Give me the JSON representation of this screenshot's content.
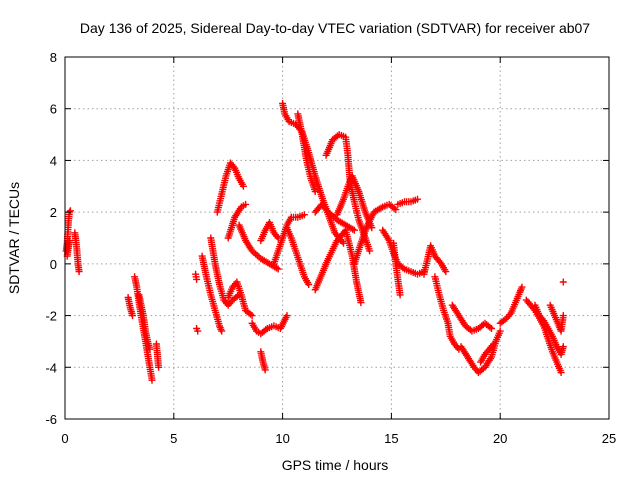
{
  "chart_data": {
    "type": "scatter",
    "title": "Day 136 of 2025, Sidereal Day-to-day VTEC variation (SDTVAR) for receiver ab07",
    "xlabel": "GPS time / hours",
    "ylabel": "SDTVAR / TECUs",
    "xlim": [
      0,
      25
    ],
    "ylim": [
      -6,
      8
    ],
    "xticks": [
      0,
      5,
      10,
      15,
      20,
      25
    ],
    "yticks": [
      -6,
      -4,
      -2,
      0,
      2,
      4,
      6,
      8
    ],
    "xtick_labels": [
      "0",
      "5",
      "10",
      "15",
      "20",
      "25"
    ],
    "ytick_labels": [
      "-6",
      "-4",
      "-2",
      "0",
      "2",
      "4",
      "6",
      "8"
    ],
    "grid": true,
    "marker": "plus",
    "color": "#ff0000",
    "series": [
      {
        "name": "ab07",
        "tracks": [
          [
            [
              0.05,
              0.5
            ],
            [
              0.1,
              0.8
            ],
            [
              0.15,
              1.5
            ],
            [
              0.2,
              2.0
            ],
            [
              0.25,
              2.05
            ]
          ],
          [
            [
              0.1,
              0.3
            ],
            [
              0.15,
              0.6
            ],
            [
              0.2,
              0.9
            ]
          ],
          [
            [
              0.45,
              1.2
            ],
            [
              0.5,
              0.9
            ],
            [
              0.55,
              0.5
            ],
            [
              0.6,
              0.0
            ],
            [
              0.65,
              -0.3
            ]
          ],
          [
            [
              2.9,
              -1.3
            ],
            [
              3.0,
              -1.7
            ],
            [
              3.1,
              -2.0
            ]
          ],
          [
            [
              3.2,
              -0.5
            ],
            [
              3.3,
              -0.9
            ],
            [
              3.4,
              -1.5
            ],
            [
              3.5,
              -2.0
            ],
            [
              3.6,
              -2.5
            ],
            [
              3.7,
              -3.0
            ],
            [
              3.8,
              -3.5
            ],
            [
              3.9,
              -4.0
            ],
            [
              4.0,
              -4.5
            ]
          ],
          [
            [
              3.4,
              -1.2
            ],
            [
              3.5,
              -1.6
            ],
            [
              3.6,
              -2.0
            ],
            [
              3.7,
              -2.6
            ],
            [
              3.8,
              -3.0
            ],
            [
              3.9,
              -3.3
            ]
          ],
          [
            [
              4.2,
              -3.1
            ],
            [
              4.3,
              -4.0
            ]
          ],
          [
            [
              6.0,
              -0.4
            ],
            [
              6.05,
              -0.6
            ]
          ],
          [
            [
              6.05,
              -2.5
            ],
            [
              6.1,
              -2.6
            ]
          ],
          [
            [
              6.3,
              0.3
            ],
            [
              6.5,
              -0.5
            ],
            [
              6.7,
              -1.2
            ],
            [
              6.9,
              -1.8
            ],
            [
              7.1,
              -2.4
            ],
            [
              7.2,
              -2.6
            ]
          ],
          [
            [
              6.7,
              1.0
            ],
            [
              6.9,
              0.0
            ],
            [
              7.1,
              -0.8
            ],
            [
              7.3,
              -1.4
            ],
            [
              7.5,
              -1.6
            ],
            [
              7.7,
              -1.4
            ],
            [
              8.0,
              -1.2
            ]
          ],
          [
            [
              7.0,
              2.0
            ],
            [
              7.2,
              2.7
            ],
            [
              7.4,
              3.4
            ],
            [
              7.6,
              3.9
            ],
            [
              7.8,
              3.7
            ],
            [
              8.0,
              3.3
            ],
            [
              8.2,
              3.0
            ]
          ],
          [
            [
              7.5,
              1.0
            ],
            [
              7.8,
              1.8
            ],
            [
              8.1,
              2.2
            ],
            [
              8.3,
              2.3
            ]
          ],
          [
            [
              7.5,
              -1.3
            ],
            [
              7.7,
              -0.9
            ],
            [
              7.9,
              -0.7
            ],
            [
              8.1,
              -1.2
            ],
            [
              8.3,
              -1.8
            ],
            [
              8.6,
              -2.0
            ]
          ],
          [
            [
              8.0,
              1.5
            ],
            [
              8.3,
              0.9
            ],
            [
              8.6,
              0.5
            ],
            [
              9.0,
              0.2
            ],
            [
              9.4,
              0.0
            ],
            [
              9.8,
              -0.2
            ]
          ],
          [
            [
              8.6,
              -2.3
            ],
            [
              8.8,
              -2.6
            ],
            [
              9.0,
              -2.7
            ],
            [
              9.3,
              -2.5
            ],
            [
              9.6,
              -2.4
            ],
            [
              9.9,
              -2.5
            ],
            [
              10.2,
              -2.0
            ]
          ],
          [
            [
              9.0,
              0.9
            ],
            [
              9.2,
              1.3
            ],
            [
              9.4,
              1.6
            ],
            [
              9.6,
              1.2
            ],
            [
              9.8,
              1.0
            ]
          ],
          [
            [
              9.0,
              -3.4
            ],
            [
              9.1,
              -3.8
            ],
            [
              9.2,
              -4.1
            ]
          ],
          [
            [
              9.6,
              0.0
            ],
            [
              9.8,
              0.5
            ],
            [
              10.0,
              1.0
            ],
            [
              10.2,
              1.5
            ],
            [
              10.4,
              1.8
            ],
            [
              10.7,
              1.8
            ],
            [
              11.0,
              1.9
            ]
          ],
          [
            [
              10.0,
              6.2
            ],
            [
              10.1,
              5.8
            ],
            [
              10.3,
              5.5
            ],
            [
              10.6,
              5.4
            ],
            [
              10.9,
              5.1
            ],
            [
              11.2,
              4.3
            ],
            [
              11.5,
              3.4
            ],
            [
              11.8,
              2.6
            ],
            [
              12.1,
              1.9
            ],
            [
              12.4,
              1.2
            ],
            [
              12.8,
              0.8
            ]
          ],
          [
            [
              10.7,
              5.8
            ],
            [
              10.9,
              5.0
            ],
            [
              11.1,
              4.0
            ],
            [
              11.3,
              3.3
            ],
            [
              11.5,
              2.8
            ]
          ],
          [
            [
              10.2,
              1.4
            ],
            [
              10.4,
              1.0
            ],
            [
              10.6,
              0.5
            ],
            [
              10.8,
              0.0
            ],
            [
              11.0,
              -0.5
            ],
            [
              11.2,
              -0.8
            ]
          ],
          [
            [
              11.5,
              2.0
            ],
            [
              11.8,
              2.3
            ],
            [
              12.1,
              2.0
            ],
            [
              12.5,
              1.7
            ],
            [
              12.9,
              1.5
            ],
            [
              13.3,
              1.3
            ]
          ],
          [
            [
              12.0,
              4.2
            ],
            [
              12.3,
              4.8
            ],
            [
              12.6,
              5.0
            ],
            [
              12.9,
              4.9
            ],
            [
              13.0,
              4.2
            ],
            [
              13.1,
              3.2
            ],
            [
              13.3,
              2.4
            ],
            [
              13.5,
              1.7
            ],
            [
              13.8,
              1.0
            ],
            [
              14.0,
              0.5
            ]
          ],
          [
            [
              12.5,
              1.9
            ],
            [
              12.8,
              2.5
            ],
            [
              13.0,
              3.0
            ],
            [
              13.2,
              3.4
            ],
            [
              13.5,
              2.8
            ],
            [
              13.8,
              2.0
            ],
            [
              14.1,
              1.4
            ]
          ],
          [
            [
              11.5,
              -1.0
            ],
            [
              11.8,
              -0.4
            ],
            [
              12.1,
              0.2
            ],
            [
              12.5,
              0.9
            ],
            [
              12.9,
              1.3
            ],
            [
              13.2,
              0.3
            ],
            [
              13.4,
              -0.7
            ],
            [
              13.6,
              -1.5
            ]
          ],
          [
            [
              13.3,
              0.0
            ],
            [
              13.6,
              0.8
            ],
            [
              13.9,
              1.5
            ],
            [
              14.2,
              2.0
            ],
            [
              14.6,
              2.2
            ],
            [
              14.9,
              2.3
            ],
            [
              15.2,
              2.1
            ]
          ],
          [
            [
              15.3,
              2.3
            ],
            [
              15.6,
              2.4
            ],
            [
              15.9,
              2.4
            ],
            [
              16.2,
              2.5
            ]
          ],
          [
            [
              14.6,
              1.3
            ],
            [
              14.9,
              0.9
            ],
            [
              15.1,
              0.4
            ],
            [
              15.3,
              0.0
            ],
            [
              15.6,
              -0.2
            ],
            [
              15.9,
              -0.3
            ],
            [
              16.2,
              -0.4
            ],
            [
              16.5,
              -0.3
            ]
          ],
          [
            [
              15.1,
              0.8
            ],
            [
              15.2,
              0.0
            ],
            [
              15.3,
              -0.6
            ],
            [
              15.4,
              -1.2
            ]
          ],
          [
            [
              16.5,
              -0.4
            ],
            [
              16.8,
              0.7
            ],
            [
              17.0,
              0.3
            ],
            [
              17.3,
              0.0
            ],
            [
              17.5,
              -0.3
            ]
          ],
          [
            [
              17.0,
              -0.5
            ],
            [
              17.2,
              -1.2
            ],
            [
              17.4,
              -1.8
            ],
            [
              17.6,
              -2.3
            ],
            [
              17.7,
              -2.8
            ],
            [
              17.9,
              -3.1
            ],
            [
              18.1,
              -3.3
            ]
          ],
          [
            [
              17.8,
              -1.6
            ],
            [
              18.1,
              -2.0
            ],
            [
              18.4,
              -2.4
            ],
            [
              18.7,
              -2.6
            ],
            [
              19.0,
              -2.5
            ],
            [
              19.3,
              -2.3
            ],
            [
              19.6,
              -2.5
            ]
          ],
          [
            [
              18.2,
              -3.2
            ],
            [
              18.5,
              -3.6
            ],
            [
              18.8,
              -4.0
            ],
            [
              19.0,
              -4.2
            ],
            [
              19.3,
              -4.0
            ],
            [
              19.6,
              -3.6
            ],
            [
              19.8,
              -3.0
            ],
            [
              20.0,
              -2.6
            ]
          ],
          [
            [
              19.1,
              -3.8
            ],
            [
              19.3,
              -3.5
            ],
            [
              19.5,
              -3.3
            ],
            [
              19.7,
              -3.1
            ]
          ],
          [
            [
              20.0,
              -2.3
            ],
            [
              20.3,
              -2.1
            ],
            [
              20.5,
              -1.9
            ],
            [
              20.7,
              -1.5
            ],
            [
              20.9,
              -1.1
            ],
            [
              21.0,
              -0.9
            ]
          ],
          [
            [
              21.2,
              -1.4
            ],
            [
              21.4,
              -1.6
            ],
            [
              21.6,
              -1.8
            ],
            [
              21.8,
              -2.1
            ],
            [
              22.0,
              -2.4
            ],
            [
              22.2,
              -2.9
            ],
            [
              22.4,
              -3.4
            ],
            [
              22.6,
              -3.8
            ],
            [
              22.8,
              -4.2
            ]
          ],
          [
            [
              21.6,
              -1.6
            ],
            [
              21.8,
              -2.0
            ],
            [
              22.0,
              -2.2
            ],
            [
              22.2,
              -2.5
            ],
            [
              22.4,
              -2.8
            ],
            [
              22.6,
              -3.2
            ],
            [
              22.8,
              -3.5
            ],
            [
              22.9,
              -3.2
            ]
          ],
          [
            [
              22.3,
              -1.6
            ],
            [
              22.5,
              -2.0
            ],
            [
              22.7,
              -2.4
            ],
            [
              22.8,
              -2.6
            ],
            [
              22.9,
              -2.0
            ]
          ],
          [
            [
              22.9,
              -0.7
            ]
          ]
        ]
      }
    ]
  }
}
